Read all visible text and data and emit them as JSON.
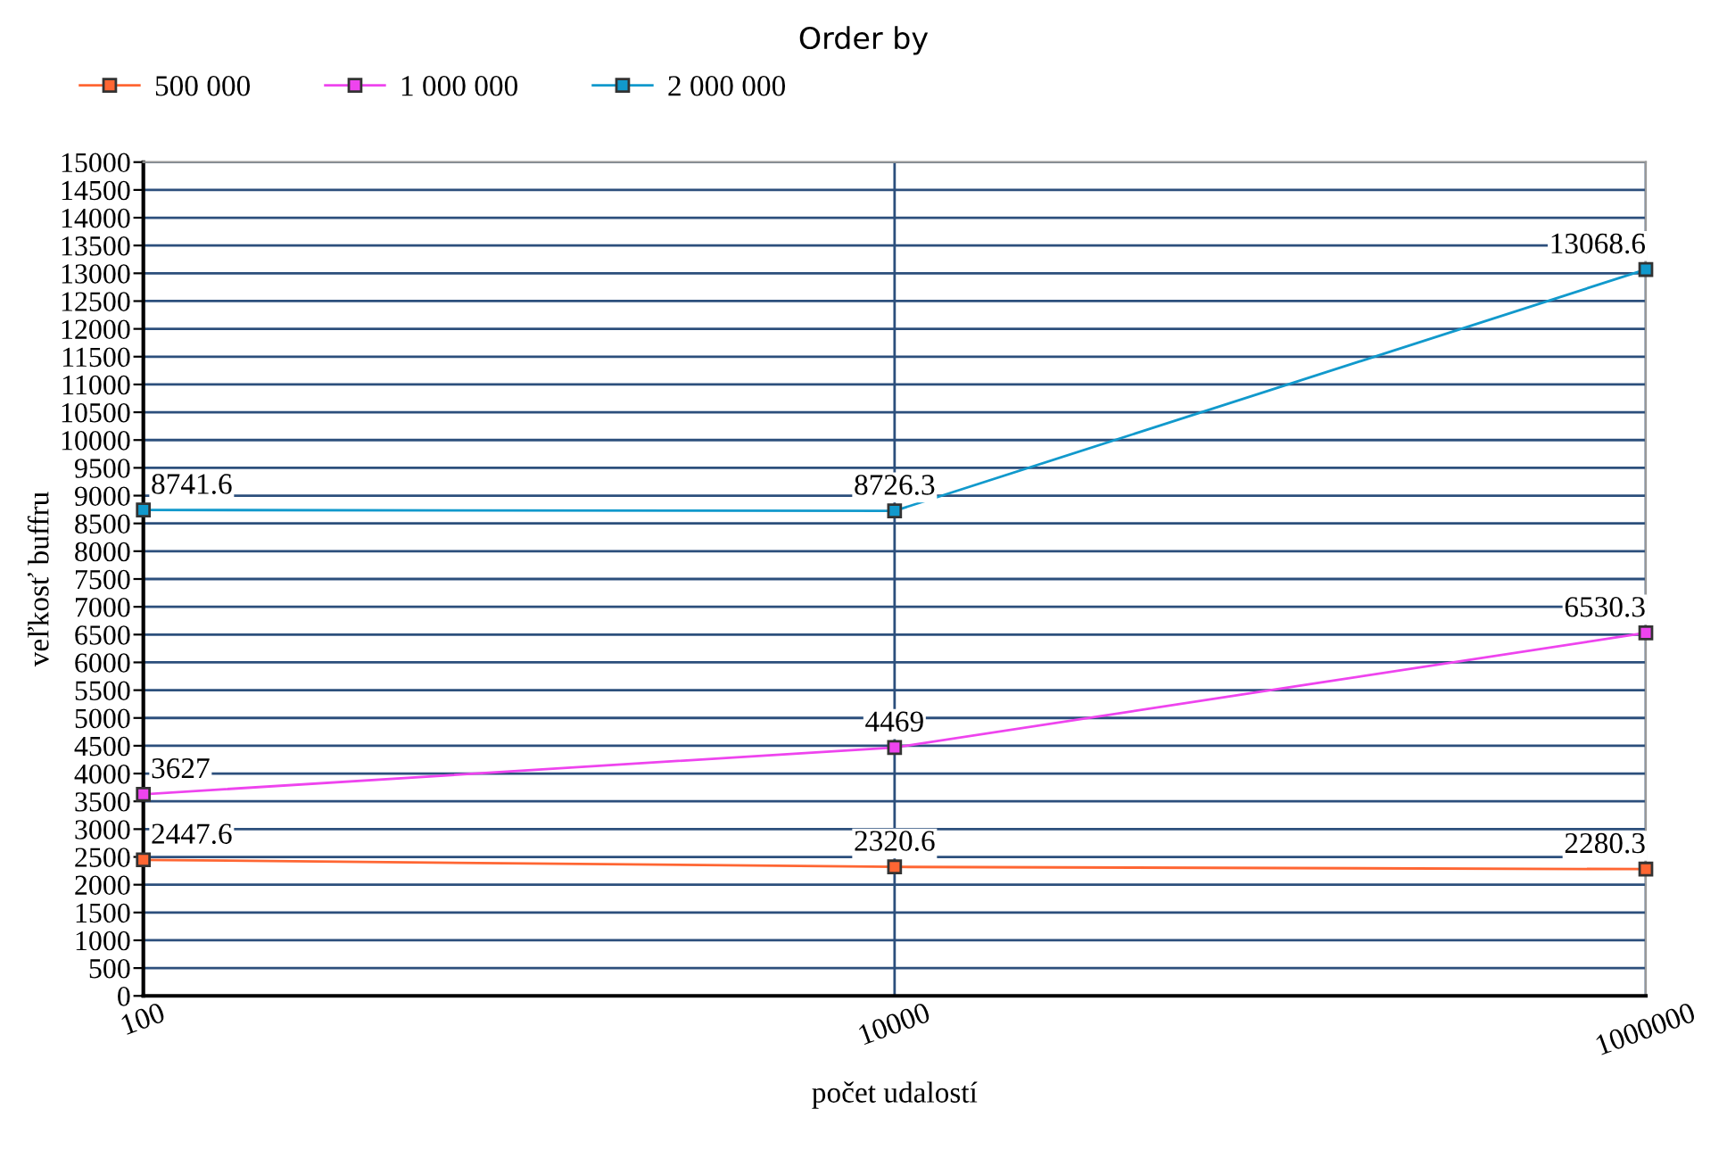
{
  "chart_data": {
    "type": "line",
    "title": "Order by",
    "xlabel": "počet udalostí",
    "ylabel": "veľkosť buffru",
    "categories": [
      "100",
      "10000",
      "1000000"
    ],
    "series": [
      {
        "name": "500 000",
        "color": "#ff6633",
        "values": [
          2447.6,
          2320.6,
          2280.3
        ]
      },
      {
        "name": "1 000 000",
        "color": "#ee44ee",
        "values": [
          3627,
          4469,
          6530.3
        ]
      },
      {
        "name": "2 000 000",
        "color": "#1199cc",
        "values": [
          8741.6,
          8726.3,
          13068.6
        ]
      }
    ],
    "ylim": [
      0,
      15000
    ],
    "yticks": [
      0,
      500,
      1000,
      1500,
      2000,
      2500,
      3000,
      3500,
      4000,
      4500,
      5000,
      5500,
      6000,
      6500,
      7000,
      7500,
      8000,
      8500,
      9000,
      9500,
      10000,
      10500,
      11000,
      11500,
      12000,
      12500,
      13000,
      13500,
      14000,
      14500,
      15000
    ],
    "grid": true,
    "legend": "top left",
    "marker": "square",
    "line_style": "solid",
    "data_labels": true
  }
}
